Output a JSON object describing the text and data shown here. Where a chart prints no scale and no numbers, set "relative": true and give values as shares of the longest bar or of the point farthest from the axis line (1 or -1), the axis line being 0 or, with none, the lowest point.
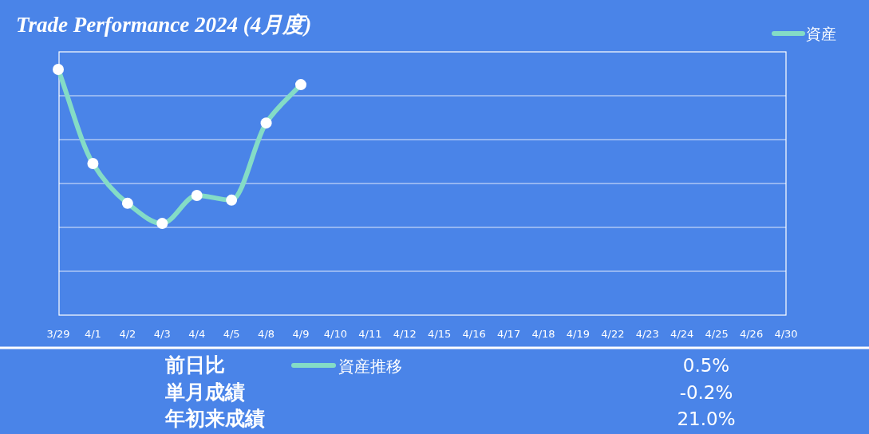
{
  "chart_data": [
    {
      "type": "line",
      "title": "Trade Performance 2024 (4月度)",
      "relative": true,
      "grid": "y",
      "legend": "top right",
      "marker": "circle",
      "line_style": "solid",
      "categories": [
        "3/29",
        "4/1",
        "4/2",
        "4/3",
        "4/4",
        "4/5",
        "4/8",
        "4/9",
        "4/10",
        "4/11",
        "4/12",
        "4/15",
        "4/16",
        "4/17",
        "4/18",
        "4/19",
        "4/22",
        "4/23",
        "4/24",
        "4/25",
        "4/26",
        "4/30"
      ],
      "series": [
        {
          "name": "資産",
          "color": "#84dcc6",
          "values": [
            1,
            0.617,
            0.455,
            0.373,
            0.487,
            0.468,
            0.782,
            0.938,
            null,
            null,
            null,
            null,
            null,
            null,
            null,
            null,
            null,
            null,
            null,
            null,
            null,
            null
          ]
        }
      ]
    },
    {
      "type": "other",
      "annotations": [
        "資産推移",
        "前日比",
        "0.5%",
        "単月成績",
        "-0.2%",
        "年初来成績",
        "21.0%"
      ]
    }
  ]
}
